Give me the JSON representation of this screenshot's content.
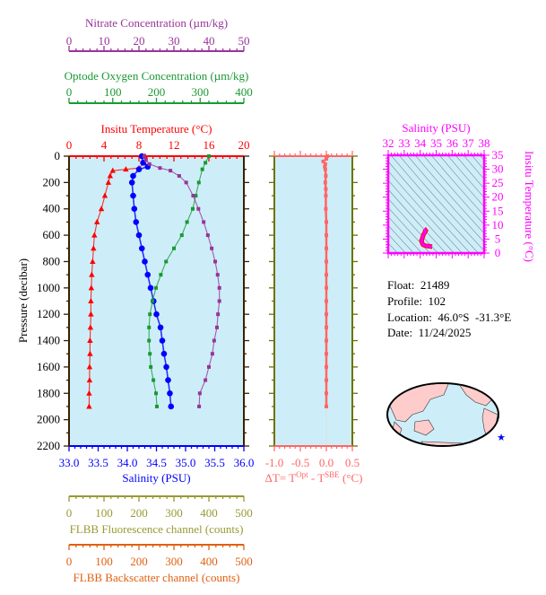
{
  "info": {
    "float": "Float:  21489",
    "profile": "Profile:  102",
    "location": "Location:  46.0°S  -31.3°E",
    "date": "Date:  11/24/2025"
  },
  "colors": {
    "nitrate": "#993399",
    "oxygen": "#1a9933",
    "temperature": "#ff0000",
    "salinity": "#0000ff",
    "fluorescence": "#999933",
    "backscatter": "#e06010",
    "delta_t": "#ff6666",
    "ts": "#ff00ff",
    "plot_bg": "#cdeef8",
    "frame": "#3a2000",
    "dt_frame": "#707000",
    "land": "#ffcccc",
    "float_marker": "#0000ff"
  },
  "map": {
    "marker_icon": "star-icon"
  },
  "chart_data": [
    {
      "type": "line",
      "title": "",
      "ylabel": "Pressure (decibar)",
      "ylim": [
        2200,
        0
      ],
      "yticks": [
        "0",
        "200",
        "400",
        "600",
        "800",
        "1000",
        "1200",
        "1400",
        "1600",
        "1800",
        "2000",
        "2200"
      ],
      "axes": [
        {
          "key": "nitrate",
          "label": "Nitrate Concentration (µm/kg)",
          "range": [
            0,
            50
          ],
          "ticks": [
            "0",
            "10",
            "20",
            "30",
            "40",
            "50"
          ],
          "position": "top"
        },
        {
          "key": "oxygen",
          "label": "Optode Oxygen Concentration (µm/kg)",
          "range": [
            0,
            400
          ],
          "ticks": [
            "0",
            "100",
            "200",
            "300",
            "400"
          ],
          "position": "top"
        },
        {
          "key": "temperature",
          "label": "Insitu Temperature (°C)",
          "range": [
            0,
            20
          ],
          "ticks": [
            "0",
            "4",
            "8",
            "12",
            "16",
            "20"
          ],
          "position": "top"
        },
        {
          "key": "salinity",
          "label": "Salinity (PSU)",
          "range": [
            33,
            36
          ],
          "ticks": [
            "33.0",
            "33.5",
            "34.0",
            "34.5",
            "35.0",
            "35.5",
            "36.0"
          ],
          "position": "bottom"
        },
        {
          "key": "fluorescence",
          "label": "FLBB Fluorescence channel (counts)",
          "range": [
            0,
            500
          ],
          "ticks": [
            "0",
            "100",
            "200",
            "300",
            "400",
            "500"
          ],
          "position": "bottom"
        },
        {
          "key": "backscatter",
          "label": "FLBB Backscatter channel (counts)",
          "range": [
            0,
            500
          ],
          "ticks": [
            "0",
            "100",
            "200",
            "300",
            "400",
            "500"
          ],
          "position": "bottom"
        }
      ],
      "series": [
        {
          "key": "temperature",
          "marker": "triangle",
          "pressure": [
            0,
            50,
            90,
            100,
            110,
            150,
            200,
            300,
            400,
            500,
            600,
            700,
            800,
            900,
            1000,
            1100,
            1200,
            1300,
            1400,
            1500,
            1600,
            1700,
            1800,
            1900
          ],
          "values": [
            8.7,
            8.6,
            8.0,
            6.5,
            5.0,
            4.7,
            4.5,
            4.1,
            3.7,
            3.2,
            2.9,
            2.8,
            2.7,
            2.6,
            2.55,
            2.5,
            2.5,
            2.45,
            2.4,
            2.4,
            2.35,
            2.35,
            2.3,
            2.3
          ]
        },
        {
          "key": "salinity",
          "marker": "circle",
          "pressure": [
            0,
            50,
            80,
            100,
            150,
            200,
            300,
            400,
            500,
            600,
            700,
            800,
            900,
            1000,
            1100,
            1200,
            1300,
            1400,
            1500,
            1600,
            1700,
            1800,
            1900
          ],
          "values": [
            34.25,
            34.27,
            34.35,
            34.2,
            34.1,
            34.08,
            34.1,
            34.12,
            34.15,
            34.2,
            34.25,
            34.3,
            34.35,
            34.4,
            34.45,
            34.5,
            34.57,
            34.6,
            34.63,
            34.67,
            34.7,
            34.73,
            34.75
          ]
        },
        {
          "key": "oxygen",
          "marker": "square",
          "pressure": [
            0,
            50,
            100,
            200,
            300,
            400,
            500,
            600,
            700,
            800,
            900,
            1000,
            1100,
            1200,
            1300,
            1400,
            1500,
            1600,
            1700,
            1800,
            1900
          ],
          "values": [
            320,
            312,
            305,
            297,
            290,
            283,
            270,
            258,
            240,
            222,
            210,
            199,
            191,
            185,
            183,
            183,
            185,
            187,
            193,
            199,
            201
          ]
        },
        {
          "key": "nitrate",
          "marker": "square",
          "pressure": [
            0,
            30,
            60,
            90,
            110,
            150,
            200,
            300,
            400,
            500,
            600,
            700,
            800,
            900,
            1000,
            1100,
            1200,
            1300,
            1400,
            1500,
            1600,
            1700,
            1800,
            1900
          ],
          "values": [
            21.5,
            22,
            23,
            26,
            29,
            31.5,
            33.5,
            35.5,
            37,
            38.5,
            39.7,
            40.8,
            41.8,
            42.5,
            43,
            43,
            42.6,
            42.3,
            41.5,
            41,
            40,
            39,
            37.4,
            37.2
          ]
        }
      ]
    },
    {
      "type": "line",
      "xlabel": "ΔT= T",
      "xlabel_sup1": "Opt",
      "xlabel_mid": " - T",
      "xlabel_sup2": "SBE",
      "xlabel_end": " (°C)",
      "xlim": [
        -1.0,
        0.5
      ],
      "xticks": [
        "-1.0",
        "-0.5",
        "0.0",
        "0.5"
      ],
      "ylim": [
        2200,
        0
      ],
      "pressure": [
        0,
        20,
        40,
        60,
        80,
        100,
        150,
        200,
        250,
        300,
        400,
        500,
        600,
        700,
        800,
        900,
        1000,
        1100,
        1200,
        1300,
        1400,
        1500,
        1600,
        1700,
        1800,
        1900
      ],
      "values": [
        0.02,
        0.0,
        -0.06,
        -0.02,
        -0.03,
        -0.02,
        -0.01,
        -0.02,
        -0.01,
        -0.01,
        -0.01,
        0.0,
        0.0,
        0.0,
        0.0,
        0.0,
        0.0,
        0.0,
        0.0,
        0.0,
        0.0,
        0.0,
        0.0,
        0.0,
        0.0,
        0.0
      ]
    },
    {
      "type": "scatter",
      "title": "Salinity (PSU)",
      "xlabel": "Salinity (PSU)",
      "ylabel": "Insitu Temperature (°C)",
      "xlim": [
        32,
        38
      ],
      "ylim": [
        0,
        35
      ],
      "xticks": [
        "32",
        "33",
        "34",
        "35",
        "36",
        "37",
        "38"
      ],
      "yticks": [
        "0",
        "5",
        "10",
        "15",
        "20",
        "25",
        "30",
        "35"
      ],
      "density_contours": true,
      "points_from": "profile"
    }
  ]
}
